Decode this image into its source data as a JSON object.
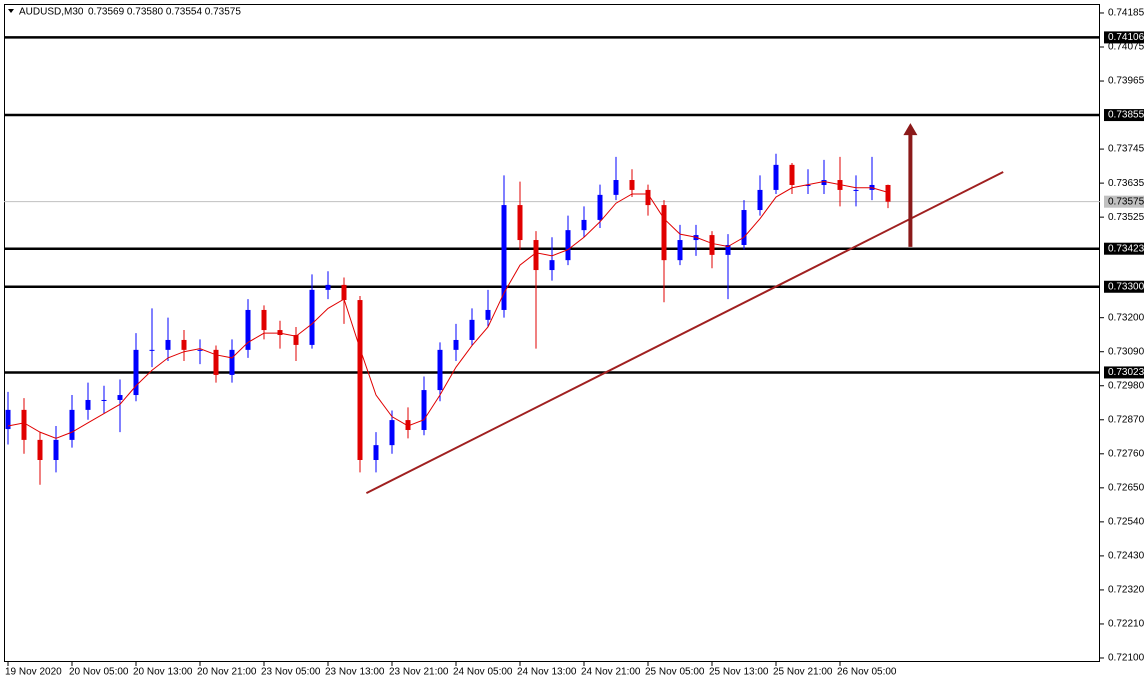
{
  "header": {
    "symbol": "AUDUSD,M30",
    "quote": "0.73569 0.73580 0.73554 0.73575"
  },
  "chart_data": {
    "type": "candlestick",
    "up_color": "#0000ff",
    "down_color": "#e00000",
    "ma_color": "#e00000",
    "categories": [
      "19 Nov 2020",
      null,
      null,
      null,
      "20 Nov 05:00",
      null,
      null,
      null,
      "20 Nov 13:00",
      null,
      null,
      null,
      "20 Nov 21:00",
      null,
      null,
      null,
      "23 Nov 05:00",
      null,
      null,
      null,
      "23 Nov 13:00",
      null,
      null,
      null,
      "23 Nov 21:00",
      null,
      null,
      null,
      "24 Nov 05:00",
      null,
      null,
      null,
      "24 Nov 13:00",
      null,
      null,
      null,
      "24 Nov 21:00",
      null,
      null,
      null,
      "25 Nov 05:00",
      null,
      null,
      null,
      "25 Nov 13:00",
      null,
      null,
      null,
      "25 Nov 21:00",
      null,
      null,
      null,
      "26 Nov 05:00",
      null,
      null,
      null
    ],
    "open": [
      0.7284,
      0.72902,
      0.72805,
      0.7274,
      0.72805,
      0.72902,
      0.72934,
      0.72934,
      0.7295,
      0.73096,
      0.73096,
      0.73128,
      0.73096,
      0.73096,
      0.73015,
      0.73096,
      0.73225,
      0.7316,
      0.73144,
      0.73112,
      0.7329,
      0.73306,
      0.73257,
      0.7274,
      0.72788,
      0.72869,
      0.72837,
      0.72966,
      0.73096,
      0.73128,
      0.73193,
      0.73225,
      0.73564,
      0.73451,
      0.73354,
      0.73386,
      0.73483,
      0.73516,
      0.73597,
      0.73645,
      0.73613,
      0.73564,
      0.73386,
      0.73451,
      0.73467,
      0.73403,
      0.73435,
      0.73548,
      0.73613,
      0.73694,
      0.73629,
      0.73629,
      0.73645,
      0.73613,
      0.73613,
      0.73629
    ],
    "high": [
      0.7296,
      0.7294,
      0.7283,
      0.7285,
      0.7295,
      0.7299,
      0.7298,
      0.73,
      0.7315,
      0.7323,
      0.732,
      0.7316,
      0.7313,
      0.7311,
      0.7313,
      0.7326,
      0.7324,
      0.7319,
      0.7317,
      0.7334,
      0.7335,
      0.7333,
      0.7327,
      0.7283,
      0.729,
      0.7291,
      0.7301,
      0.7312,
      0.7318,
      0.7323,
      0.7329,
      0.7366,
      0.7364,
      0.7348,
      0.7346,
      0.7353,
      0.7356,
      0.7363,
      0.7372,
      0.7368,
      0.7363,
      0.7358,
      0.735,
      0.735,
      0.7348,
      0.7347,
      0.7358,
      0.7366,
      0.7373,
      0.737,
      0.7368,
      0.7371,
      0.7372,
      0.7366,
      0.7372,
      0.7363
    ],
    "low": [
      0.7279,
      0.7276,
      0.7266,
      0.727,
      0.7278,
      0.7287,
      0.7289,
      0.7283,
      0.7293,
      0.7304,
      0.7306,
      0.7306,
      0.7305,
      0.7299,
      0.7299,
      0.7307,
      0.7313,
      0.731,
      0.7306,
      0.731,
      0.7326,
      0.7318,
      0.727,
      0.727,
      0.7276,
      0.7281,
      0.7282,
      0.7293,
      0.7306,
      0.7311,
      0.7317,
      0.732,
      0.7342,
      0.731,
      0.7332,
      0.7337,
      0.7346,
      0.7349,
      0.7358,
      0.7359,
      0.7353,
      0.7325,
      0.7337,
      0.734,
      0.7336,
      0.7326,
      0.7342,
      0.7353,
      0.736,
      0.736,
      0.736,
      0.736,
      0.7356,
      0.7356,
      0.7358,
      0.73554
    ],
    "close": [
      0.72902,
      0.72805,
      0.7274,
      0.72805,
      0.72902,
      0.72934,
      0.72934,
      0.7295,
      0.73096,
      0.73096,
      0.73128,
      0.73096,
      0.73096,
      0.73015,
      0.73096,
      0.73225,
      0.7316,
      0.73144,
      0.73112,
      0.7329,
      0.73306,
      0.73257,
      0.7274,
      0.72788,
      0.72869,
      0.72837,
      0.72966,
      0.73096,
      0.73128,
      0.73193,
      0.73225,
      0.73564,
      0.73451,
      0.73354,
      0.73386,
      0.73483,
      0.73516,
      0.73597,
      0.73645,
      0.73613,
      0.73564,
      0.73386,
      0.73451,
      0.73467,
      0.73403,
      0.73435,
      0.73548,
      0.73613,
      0.73694,
      0.73629,
      0.73629,
      0.73645,
      0.73613,
      0.73613,
      0.73629,
      0.73575
    ],
    "ma": [
      0.7285,
      0.7286,
      0.7283,
      0.7281,
      0.7283,
      0.7286,
      0.7289,
      0.7292,
      0.7298,
      0.7303,
      0.7307,
      0.7309,
      0.731,
      0.7308,
      0.7307,
      0.7312,
      0.7315,
      0.7315,
      0.7314,
      0.7318,
      0.7323,
      0.7326,
      0.731,
      0.7295,
      0.7288,
      0.7285,
      0.7287,
      0.7295,
      0.7304,
      0.7311,
      0.7317,
      0.7328,
      0.7337,
      0.7341,
      0.734,
      0.7342,
      0.7346,
      0.7351,
      0.7357,
      0.736,
      0.736,
      0.7352,
      0.7347,
      0.7346,
      0.7344,
      0.7343,
      0.7346,
      0.7352,
      0.7359,
      0.7362,
      0.7363,
      0.7364,
      0.7363,
      0.7362,
      0.7362,
      0.73605
    ],
    "ylim": [
      0.72087,
      0.74214
    ],
    "yticks": [
      0.74185,
      0.74075,
      0.73965,
      0.73745,
      0.73635,
      0.73525,
      {
        "value": 0.732,
        "label": "0.73200"
      },
      {
        "value": 0.7309,
        "label": "0.73090"
      },
      {
        "value": 0.7298,
        "label": "0.72980"
      },
      {
        "value": 0.7287,
        "label": "0.72870"
      },
      {
        "value": 0.7276,
        "label": "0.72760"
      },
      {
        "value": 0.7265,
        "label": "0.72650"
      },
      {
        "value": 0.7254,
        "label": "0.72540"
      },
      {
        "value": 0.7243,
        "label": "0.72430"
      },
      {
        "value": 0.7232,
        "label": "0.72320"
      },
      {
        "value": 0.7221,
        "label": "0.72210"
      },
      {
        "value": 0.721,
        "label": "0.72100"
      }
    ],
    "levels": [
      0.74106,
      0.73855,
      0.73423,
      {
        "value": 0.733,
        "label": "0.73300"
      },
      0.73023
    ],
    "current_price": 0.73575,
    "trendline": {
      "x": [
        22.4,
        62.2
      ],
      "y": [
        0.72633,
        0.73671
      ],
      "color": "#a02020"
    },
    "arrow": {
      "x": 56.4,
      "y": [
        0.73429,
        0.73829
      ],
      "color": "#8b1a1a"
    }
  }
}
